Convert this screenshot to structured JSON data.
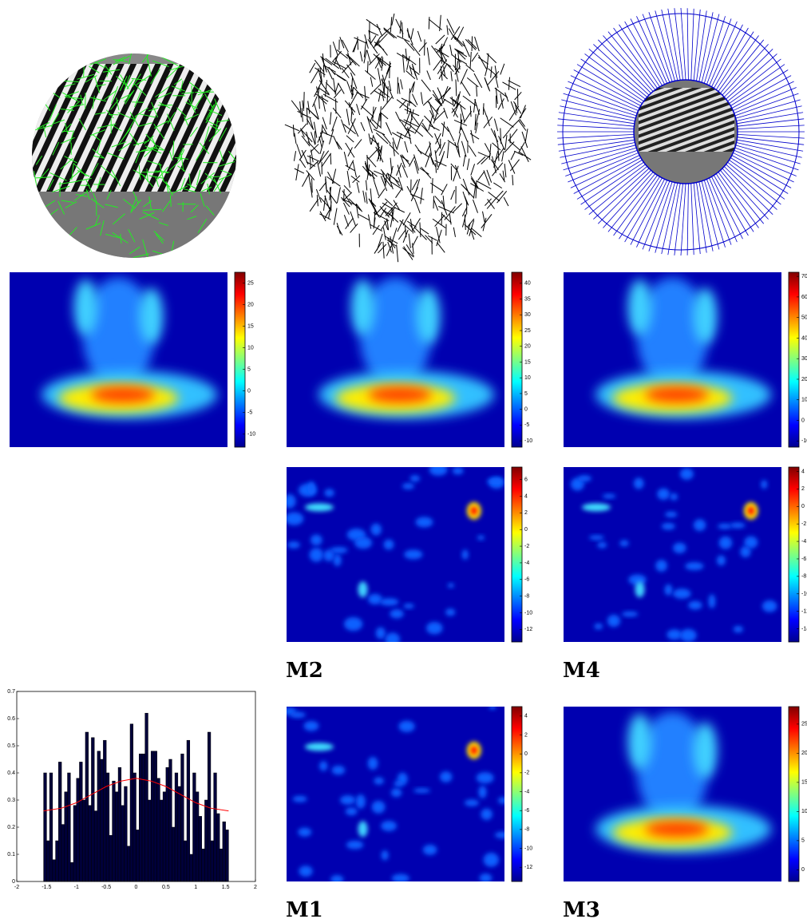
{
  "panel_labels": [
    "M2",
    "M4",
    "M1",
    "M3"
  ],
  "colorbars": [
    {
      "lim": [
        -13,
        27.5
      ],
      "ticks": [
        25,
        20,
        15,
        10,
        5,
        0,
        -5,
        -10
      ]
    },
    {
      "lim": [
        -12,
        43.5
      ],
      "ticks": [
        40,
        35,
        30,
        25,
        20,
        15,
        10,
        5,
        0,
        -5,
        -10
      ]
    },
    {
      "lim": [
        -13,
        72
      ],
      "ticks": [
        70,
        60,
        50,
        40,
        30,
        20,
        10,
        0,
        -10
      ]
    },
    {
      "lim": [
        -13.5,
        7.5
      ],
      "ticks": [
        6,
        4,
        2,
        0,
        -2,
        -4,
        -6,
        -8,
        -10,
        -12
      ]
    },
    {
      "lim": [
        -15.5,
        4.5
      ],
      "ticks": [
        4,
        2,
        0,
        -2,
        -4,
        -6,
        -8,
        -10,
        -12,
        -14
      ]
    },
    {
      "lim": [
        -13.5,
        5
      ],
      "ticks": [
        4,
        2,
        0,
        -2,
        -4,
        -6,
        -8,
        -10,
        -12
      ]
    },
    {
      "lim": [
        -2,
        28
      ],
      "ticks": [
        25,
        20,
        15,
        10,
        5,
        0
      ]
    }
  ],
  "chart_data": {
    "type": "histogram",
    "bins": [
      -1.55,
      -1.5,
      -1.45,
      -1.4,
      -1.35,
      -1.3,
      -1.25,
      -1.2,
      -1.15,
      -1.1,
      -1.05,
      -1,
      -0.95,
      -0.9,
      -0.85,
      -0.8,
      -0.75,
      -0.7,
      -0.65,
      -0.6,
      -0.55,
      -0.5,
      -0.45,
      -0.4,
      -0.35,
      -0.3,
      -0.25,
      -0.2,
      -0.15,
      -0.1,
      -0.05,
      0,
      0.05,
      0.1,
      0.15,
      0.2,
      0.25,
      0.3,
      0.35,
      0.4,
      0.45,
      0.5,
      0.55,
      0.6,
      0.65,
      0.7,
      0.75,
      0.8,
      0.85,
      0.9,
      0.95,
      1,
      1.05,
      1.1,
      1.15,
      1.2,
      1.25,
      1.3,
      1.35,
      1.4,
      1.45,
      1.5,
      1.55
    ],
    "values": [
      0.4,
      0.15,
      0.4,
      0.08,
      0.15,
      0.44,
      0.21,
      0.33,
      0.4,
      0.07,
      0.28,
      0.38,
      0.44,
      0.3,
      0.55,
      0.28,
      0.53,
      0.26,
      0.48,
      0.45,
      0.52,
      0.4,
      0.17,
      0.37,
      0.33,
      0.42,
      0.28,
      0.35,
      0.13,
      0.58,
      0.4,
      0.19,
      0.47,
      0.47,
      0.62,
      0.3,
      0.48,
      0.48,
      0.38,
      0.3,
      0.33,
      0.42,
      0.45,
      0.2,
      0.4,
      0.35,
      0.47,
      0.15,
      0.52,
      0.1,
      0.4,
      0.33,
      0.24,
      0.12,
      0.3,
      0.55,
      0.15,
      0.4,
      0.25,
      0.12,
      0.22,
      0.19
    ],
    "color": "#00003a",
    "curve": {
      "color": "#ff0000",
      "x": [
        -1.55,
        -1.25,
        -1,
        -0.75,
        -0.5,
        -0.25,
        0,
        0.25,
        0.5,
        0.75,
        1,
        1.25,
        1.55
      ],
      "values": [
        0.26,
        0.27,
        0.29,
        0.32,
        0.35,
        0.37,
        0.38,
        0.37,
        0.35,
        0.32,
        0.29,
        0.27,
        0.26
      ]
    },
    "xlim": [
      -2,
      2
    ],
    "xticks": [
      -2,
      -1.5,
      -1,
      -0.5,
      0,
      0.5,
      1,
      1.5,
      2
    ],
    "ylim": [
      0,
      0.7
    ],
    "yticks": [
      0,
      0.1,
      0.2,
      0.3,
      0.4,
      0.5,
      0.6,
      0.7
    ]
  }
}
